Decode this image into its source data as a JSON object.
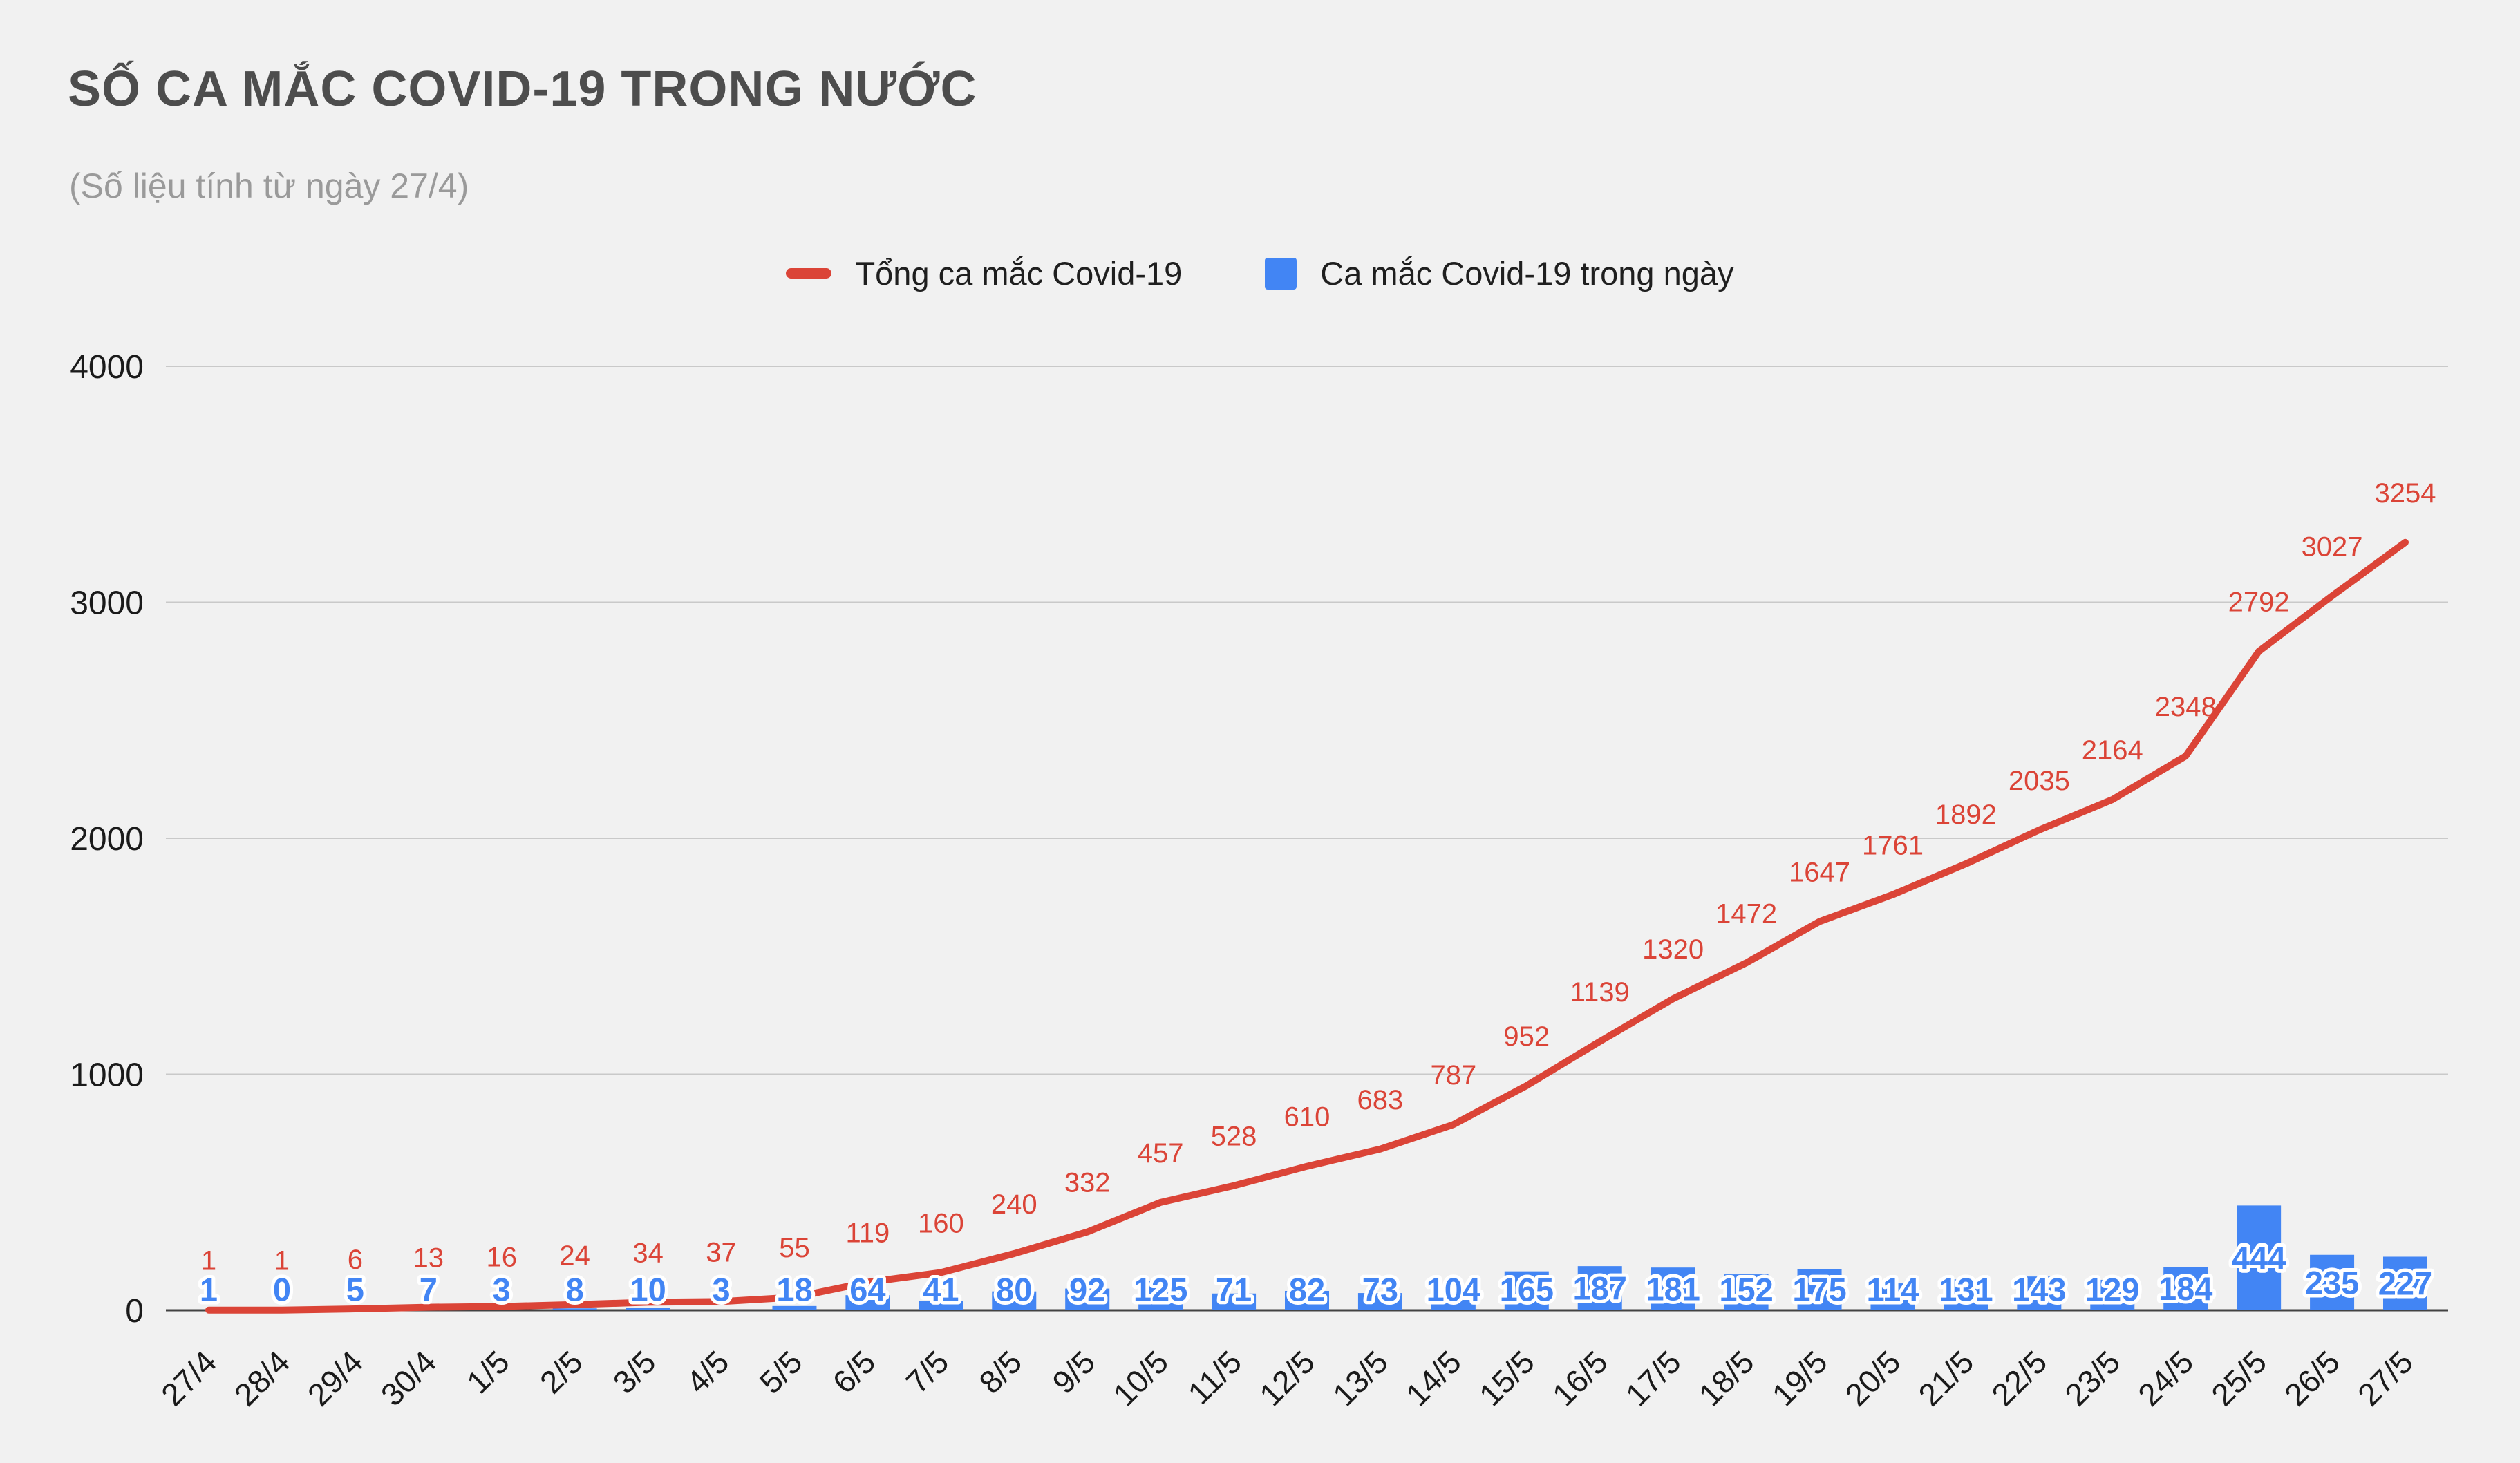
{
  "title": "SỐ CA MẮC COVID-19 TRONG NƯỚC",
  "subtitle": "(Số liệu tính từ ngày 27/4)",
  "legend": {
    "total": "Tổng ca mắc Covid-19",
    "daily": "Ca mắc Covid-19 trong ngày"
  },
  "colors": {
    "background": "#f1f1f1",
    "line": "#db4437",
    "bar": "#4285f4",
    "grid": "#c9c9c9",
    "axis": "#424242",
    "title": "#4d4d4d",
    "subtitle": "#9a9a9a",
    "tick_text": "#1a1a1a",
    "label_halo": "#ffffff"
  },
  "chart_data": {
    "type": "combo",
    "title": "SỐ CA MẮC COVID-19 TRONG NƯỚC",
    "subtitle": "(Số liệu tính từ ngày 27/4)",
    "categories": [
      "27/4",
      "28/4",
      "29/4",
      "30/4",
      "1/5",
      "2/5",
      "3/5",
      "4/5",
      "5/5",
      "6/5",
      "7/5",
      "8/5",
      "9/5",
      "10/5",
      "11/5",
      "12/5",
      "13/5",
      "14/5",
      "15/5",
      "16/5",
      "17/5",
      "18/5",
      "19/5",
      "20/5",
      "21/5",
      "22/5",
      "23/5",
      "24/5",
      "25/5",
      "26/5",
      "27/5"
    ],
    "series": [
      {
        "name": "Tổng ca mắc Covid-19",
        "type": "line",
        "color": "#db4437",
        "values": [
          1,
          1,
          6,
          13,
          16,
          24,
          34,
          37,
          55,
          119,
          160,
          240,
          332,
          457,
          528,
          610,
          683,
          787,
          952,
          1139,
          1320,
          1472,
          1647,
          1761,
          1892,
          2035,
          2164,
          2348,
          2792,
          3027,
          3254
        ]
      },
      {
        "name": "Ca mắc Covid-19 trong ngày",
        "type": "bar",
        "color": "#4285f4",
        "values": [
          1,
          0,
          5,
          7,
          3,
          8,
          10,
          3,
          18,
          64,
          41,
          80,
          92,
          125,
          71,
          82,
          73,
          104,
          165,
          187,
          181,
          152,
          175,
          114,
          131,
          143,
          129,
          184,
          444,
          235,
          227
        ]
      }
    ],
    "xlabel": "",
    "ylabel": "",
    "ylim": [
      0,
      4000
    ],
    "yticks": [
      0,
      1000,
      2000,
      3000,
      4000
    ],
    "grid": true,
    "legend_position": "top",
    "data_labels": true
  }
}
